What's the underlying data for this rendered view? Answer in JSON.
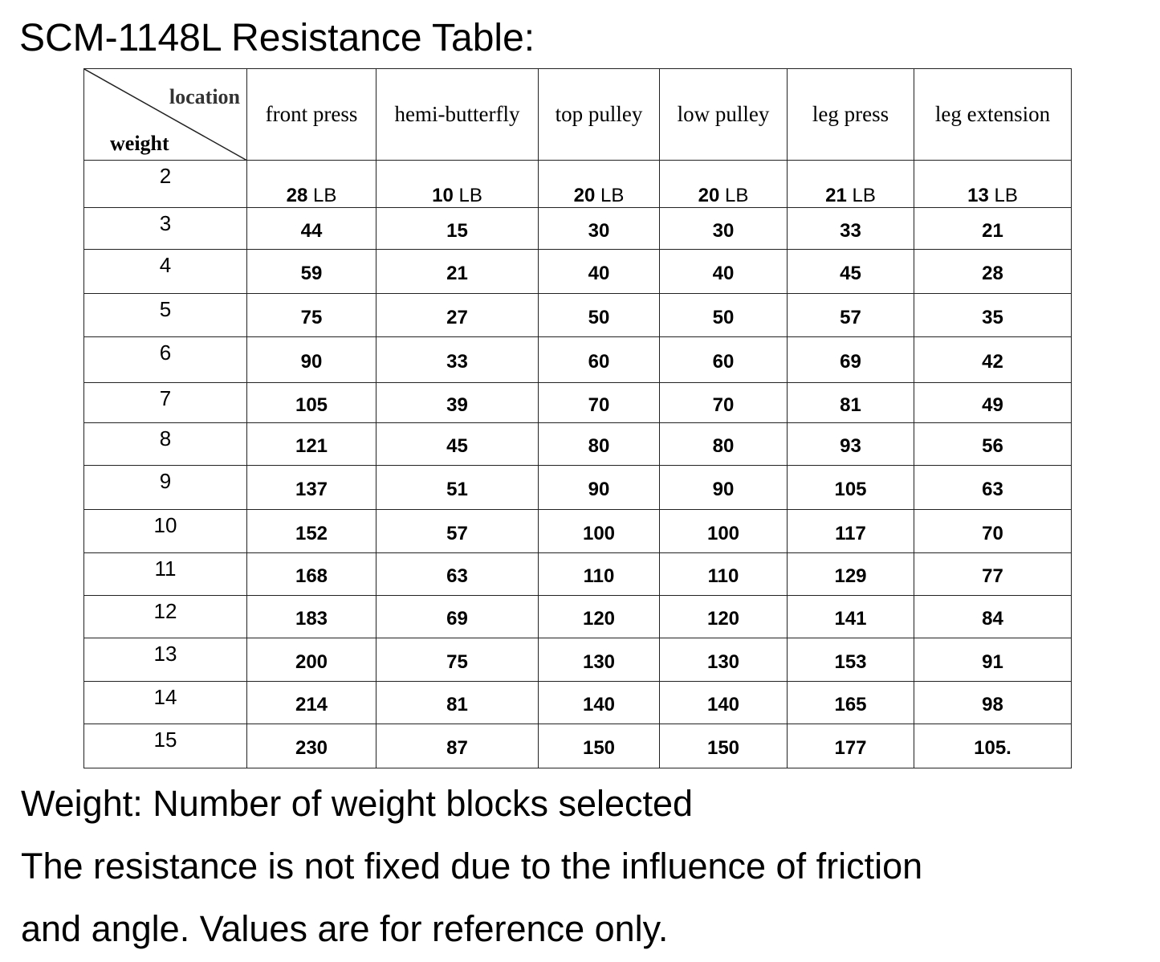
{
  "title": "SCM-1148L Resistance Table:",
  "table": {
    "corner_top": "location",
    "corner_bottom": "weight",
    "columns": [
      "front press",
      "hemi-butterfly",
      "top pulley",
      "low pulley",
      "leg press",
      "leg extension"
    ],
    "unit": "LB",
    "rows": [
      {
        "weight": "2",
        "values": [
          "28",
          "10",
          "20",
          "20",
          "21",
          "13"
        ]
      },
      {
        "weight": "3",
        "values": [
          "44",
          "15",
          "30",
          "30",
          "33",
          "21"
        ]
      },
      {
        "weight": "4",
        "values": [
          "59",
          "21",
          "40",
          "40",
          "45",
          "28"
        ]
      },
      {
        "weight": "5",
        "values": [
          "75",
          "27",
          "50",
          "50",
          "57",
          "35"
        ]
      },
      {
        "weight": "6",
        "values": [
          "90",
          "33",
          "60",
          "60",
          "69",
          "42"
        ]
      },
      {
        "weight": "7",
        "values": [
          "105",
          "39",
          "70",
          "70",
          "81",
          "49"
        ]
      },
      {
        "weight": "8",
        "values": [
          "121",
          "45",
          "80",
          "80",
          "93",
          "56"
        ]
      },
      {
        "weight": "9",
        "values": [
          "137",
          "51",
          "90",
          "90",
          "105",
          "63"
        ]
      },
      {
        "weight": "10",
        "values": [
          "152",
          "57",
          "100",
          "100",
          "117",
          "70"
        ]
      },
      {
        "weight": "11",
        "values": [
          "168",
          "63",
          "110",
          "110",
          "129",
          "77"
        ]
      },
      {
        "weight": "12",
        "values": [
          "183",
          "69",
          "120",
          "120",
          "141",
          "84"
        ]
      },
      {
        "weight": "13",
        "values": [
          "200",
          "75",
          "130",
          "130",
          "153",
          "91"
        ]
      },
      {
        "weight": "14",
        "values": [
          "214",
          "81",
          "140",
          "140",
          "165",
          "98"
        ]
      },
      {
        "weight": "15",
        "values": [
          "230",
          "87",
          "150",
          "150",
          "177",
          "105."
        ]
      }
    ]
  },
  "notes": [
    "Weight: Number of weight blocks selected",
    "The resistance is not fixed due to the influence of friction",
    "and angle. Values are for reference only."
  ]
}
